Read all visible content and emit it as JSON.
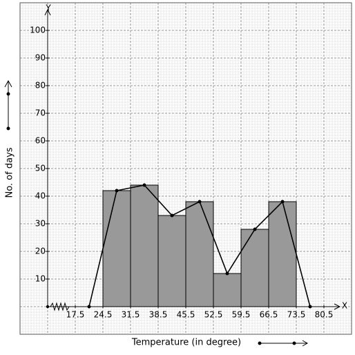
{
  "chart_data": {
    "type": "histogram",
    "x_axis_letter": "X",
    "y_axis_letter": "Y",
    "xlabel": "Temperature (in degree)",
    "ylabel": "No. of days",
    "bins": [
      24.5,
      31.5,
      38.5,
      45.5,
      52.5,
      59.5,
      66.5,
      73.5
    ],
    "values": [
      42,
      44,
      33,
      38,
      12,
      28,
      38
    ],
    "color": "#999999",
    "polygon": {
      "x": [
        21,
        28,
        35,
        42,
        49,
        56,
        63,
        70,
        77
      ],
      "values": [
        0,
        42,
        44,
        33,
        38,
        12,
        28,
        38,
        0
      ],
      "color": "#000000"
    },
    "xlim": [
      10.5,
      87.5
    ],
    "ylim": [
      0,
      110
    ],
    "xticks": [
      17.5,
      24.5,
      31.5,
      38.5,
      45.5,
      52.5,
      59.5,
      66.5,
      73.5,
      80.5
    ],
    "yticks": [
      10,
      20,
      30,
      40,
      50,
      60,
      70,
      80,
      90,
      100
    ],
    "grid": true
  }
}
